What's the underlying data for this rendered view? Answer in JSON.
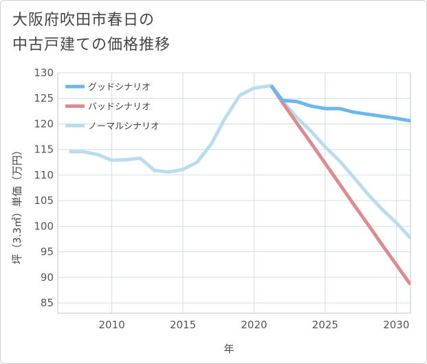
{
  "title_lines": [
    "大阪府吹田市春日の",
    "中古戸建ての価格推移"
  ],
  "chart_data": {
    "type": "line",
    "title": "大阪府吹田市春日の中古戸建ての価格推移",
    "xlabel": "年",
    "ylabel": "坪（3.3㎡）単価（万円）",
    "xlim": [
      2006.2,
      2031
    ],
    "ylim": [
      83,
      130
    ],
    "xticks": [
      2010,
      2015,
      2020,
      2025,
      2030
    ],
    "yticks": [
      85,
      90,
      95,
      100,
      105,
      110,
      115,
      120,
      125,
      130
    ],
    "legend_position": "top-left",
    "series": [
      {
        "name": "グッドシナリオ",
        "color": "#6ab8ec",
        "x": [
          2021.2,
          2022,
          2023,
          2024,
          2025,
          2026,
          2027,
          2028,
          2029,
          2030,
          2031
        ],
        "values": [
          127.5,
          124.6,
          124.4,
          123.5,
          123.0,
          123.0,
          122.3,
          121.9,
          121.5,
          121.1,
          120.6
        ]
      },
      {
        "name": "バッドシナリオ",
        "color": "#dc8c8e",
        "x": [
          2021.2,
          2022,
          2023,
          2024,
          2025,
          2026,
          2027,
          2028,
          2029,
          2030,
          2031
        ],
        "values": [
          127.5,
          124.2,
          120.2,
          116.3,
          112.3,
          108.3,
          104.3,
          100.4,
          96.4,
          92.5,
          88.6
        ]
      },
      {
        "name": "ノーマルシナリオ",
        "color": "#b9dcef",
        "x": [
          2007,
          2008,
          2009,
          2010,
          2011,
          2012,
          2013,
          2014,
          2015,
          2016,
          2017,
          2018,
          2019,
          2020,
          2021.2,
          2022,
          2023,
          2024,
          2025,
          2026,
          2027,
          2028,
          2029,
          2030,
          2031
        ],
        "values": [
          114.6,
          114.6,
          114.0,
          112.9,
          113.0,
          113.3,
          110.9,
          110.6,
          111.1,
          112.5,
          116.1,
          121.3,
          125.6,
          127.0,
          127.5,
          124.5,
          121.3,
          118.6,
          115.5,
          112.8,
          109.6,
          106.3,
          103.3,
          100.7,
          97.7
        ]
      }
    ]
  }
}
